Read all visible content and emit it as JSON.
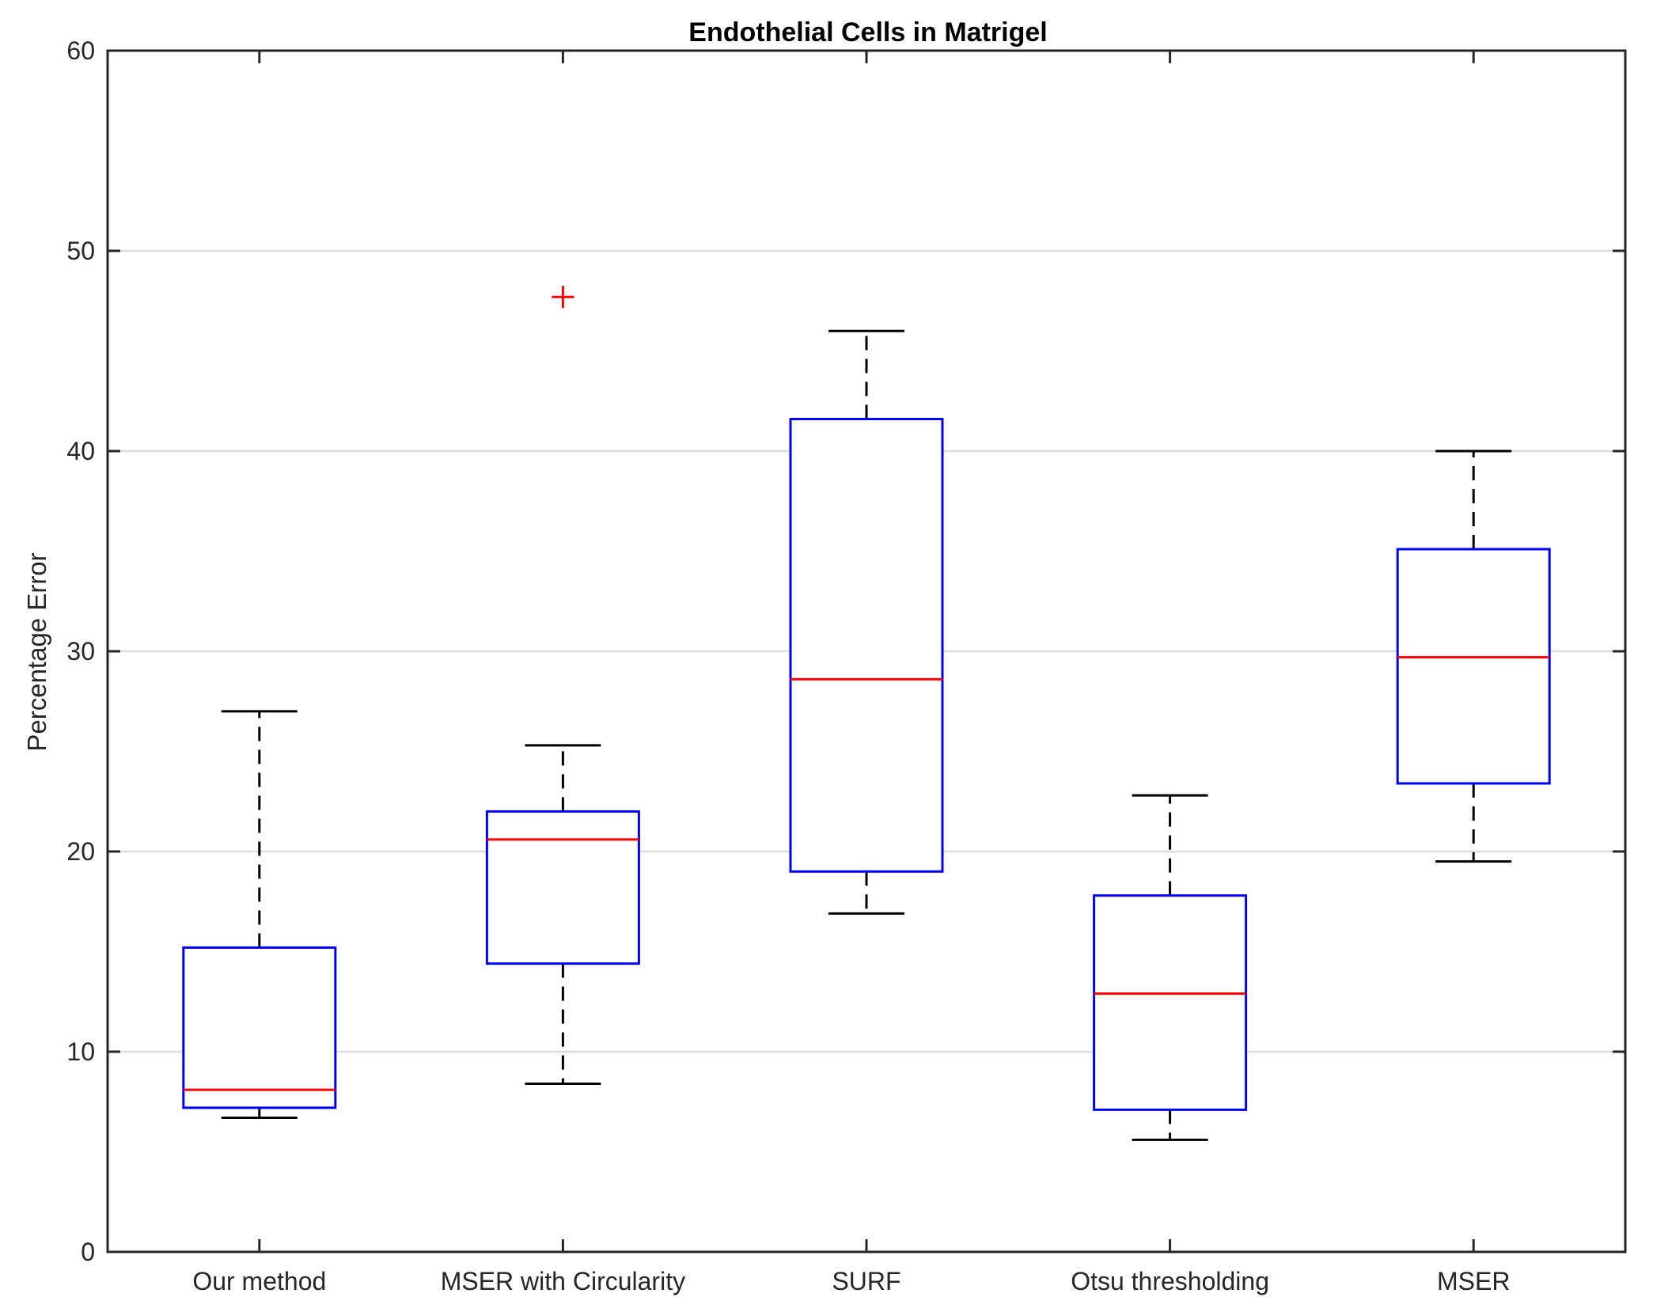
{
  "chart_data": {
    "type": "box",
    "title": "Endothelial Cells in Matrigel",
    "xlabel": "",
    "ylabel": "Percentage Error",
    "ylim": [
      0,
      60
    ],
    "yticks": [
      0,
      10,
      20,
      30,
      40,
      50,
      60
    ],
    "ytick_labels": [
      "0",
      "10",
      "20",
      "30",
      "40",
      "50",
      "60"
    ],
    "grid": "horizontal",
    "categories": [
      "Our method",
      "MSER with Circularity",
      "SURF",
      "Otsu thresholding",
      "MSER"
    ],
    "boxes": [
      {
        "name": "Our method",
        "whisker_low": 6.7,
        "q1": 7.2,
        "median": 8.1,
        "q3": 15.2,
        "whisker_high": 27.0,
        "outliers": []
      },
      {
        "name": "MSER with Circularity",
        "whisker_low": 8.4,
        "q1": 14.4,
        "median": 20.6,
        "q3": 22.0,
        "whisker_high": 25.3,
        "outliers": [
          47.7
        ]
      },
      {
        "name": "SURF",
        "whisker_low": 16.9,
        "q1": 19.0,
        "median": 28.6,
        "q3": 41.6,
        "whisker_high": 46.0,
        "outliers": []
      },
      {
        "name": "Otsu thresholding",
        "whisker_low": 5.6,
        "q1": 7.1,
        "median": 12.9,
        "q3": 17.8,
        "whisker_high": 22.8,
        "outliers": []
      },
      {
        "name": "MSER",
        "whisker_low": 19.5,
        "q1": 23.4,
        "median": 29.7,
        "q3": 35.1,
        "whisker_high": 40.0,
        "outliers": []
      }
    ],
    "colors": {
      "box": "#0000ff",
      "median": "#ff0000",
      "whisker": "#000000",
      "outlier": "#ff0000",
      "grid": "#dcdcdc",
      "axis": "#262626"
    }
  }
}
